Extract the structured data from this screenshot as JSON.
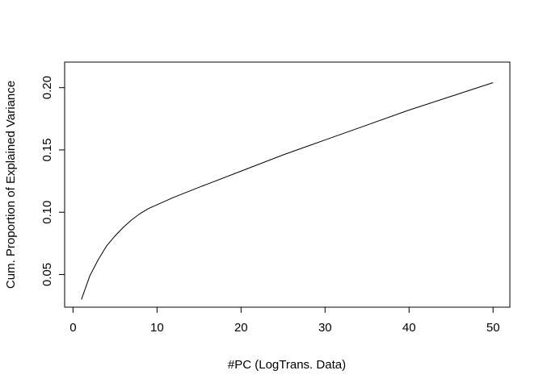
{
  "chart_data": {
    "type": "line",
    "title": "",
    "xlabel": "#PC (LogTrans. Data)",
    "ylabel": "Cum. Proportion of Explained Variance",
    "xlim": [
      -1,
      52
    ],
    "ylim": [
      0.0238,
      0.2205
    ],
    "x_ticks": [
      0,
      10,
      20,
      30,
      40,
      50
    ],
    "x_tick_labels": [
      "0",
      "10",
      "20",
      "30",
      "40",
      "50"
    ],
    "y_ticks": [
      0.05,
      0.1,
      0.15,
      0.2
    ],
    "y_tick_labels": [
      "0.05",
      "0.10",
      "0.15",
      "0.20"
    ],
    "grid": false,
    "legend": "none",
    "line_color": "#000000",
    "series": [
      {
        "x": [
          1,
          2,
          3,
          4,
          5,
          6,
          7,
          8,
          9,
          10,
          12,
          15,
          20,
          25,
          30,
          35,
          40,
          45,
          50
        ],
        "values": [
          0.03,
          0.049,
          0.062,
          0.073,
          0.081,
          0.088,
          0.094,
          0.099,
          0.103,
          0.106,
          0.112,
          0.12,
          0.133,
          0.146,
          0.158,
          0.17,
          0.182,
          0.193,
          0.204
        ]
      }
    ]
  }
}
